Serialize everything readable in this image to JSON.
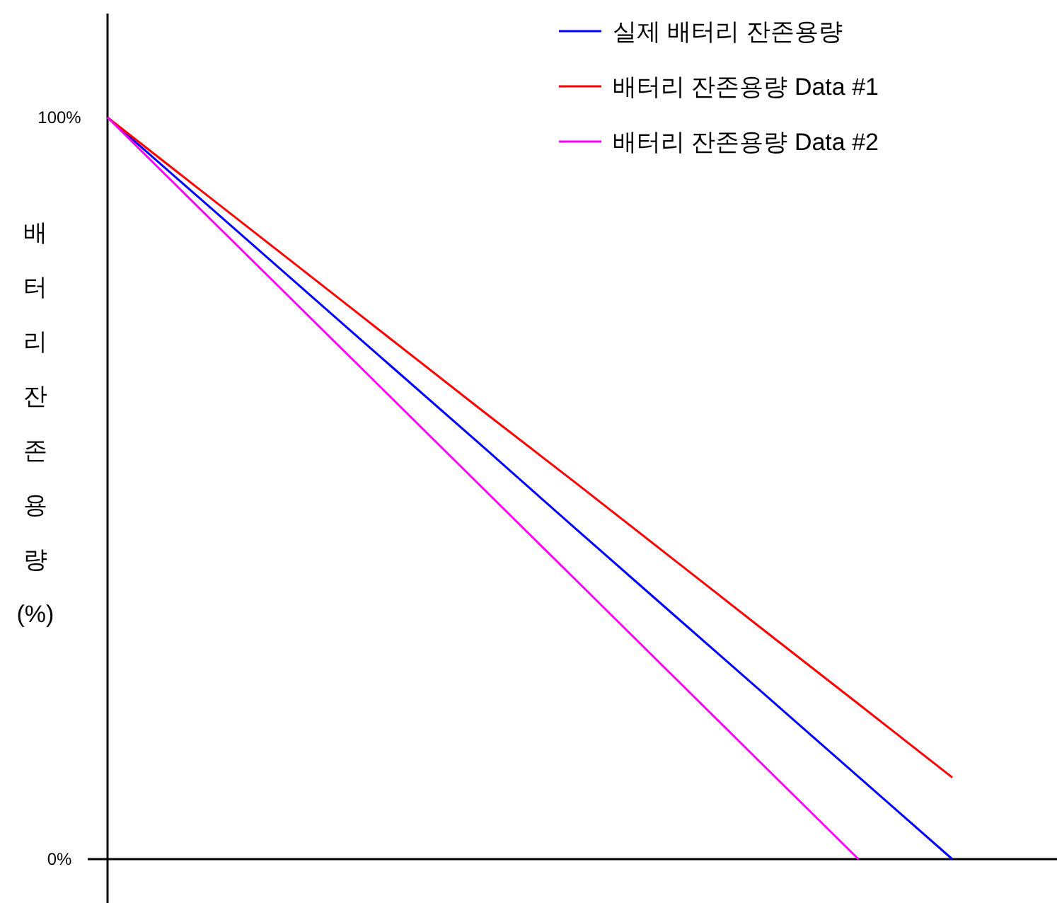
{
  "chart_data": {
    "type": "line",
    "ylabel": "배터리잔존용량(%)",
    "categories": [
      null,
      null,
      null,
      null,
      null,
      null,
      null,
      null,
      null,
      null
    ],
    "series": [
      {
        "name": "실제 배터리 잔존용량",
        "color": "#0000ff",
        "values": [
          100,
          88.9,
          77.8,
          66.7,
          55.6,
          44.4,
          33.3,
          22.2,
          11.1,
          0
        ]
      },
      {
        "name": "배터리 잔존용량 Data #1",
        "color": "#ff0000",
        "values": [
          100,
          90.1,
          80.2,
          70.3,
          60.4,
          50.6,
          40.7,
          30.8,
          20.9,
          11
        ]
      },
      {
        "name": "배터리 잔존용량 Data #2",
        "color": "#ff00ff",
        "values": [
          100,
          87.5,
          75,
          62.5,
          50,
          37.5,
          25,
          12.5,
          0,
          null
        ]
      }
    ],
    "ylim": [
      -6,
      114
    ],
    "yticks": [
      {
        "value": 100,
        "label": "100%"
      },
      {
        "value": 0,
        "label": "0%"
      }
    ],
    "tick_labels": "y",
    "legend": "top right"
  }
}
